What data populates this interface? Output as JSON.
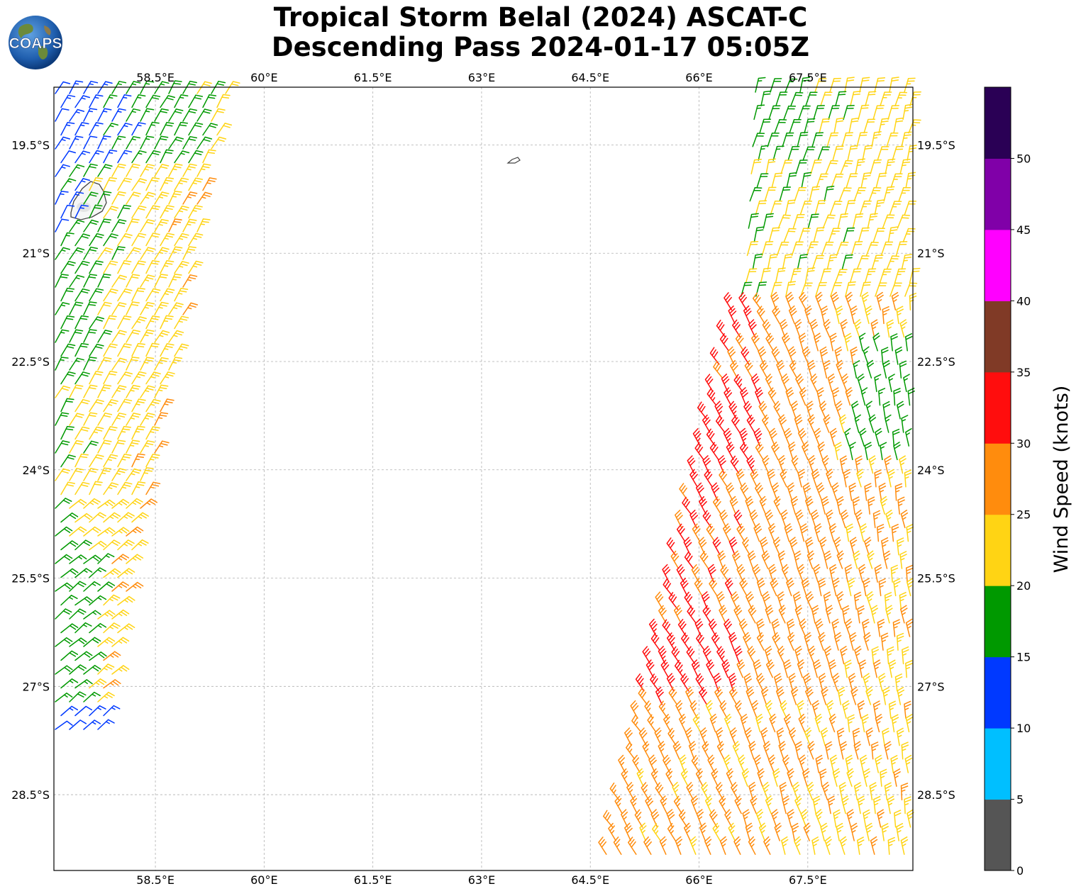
{
  "title": {
    "line1": "Tropical Storm Belal (2024) ASCAT-C",
    "line2": "Descending Pass 2024-01-17 05:05Z"
  },
  "logo": {
    "text": "COAPS",
    "icon": "globe-logo-icon"
  },
  "map": {
    "lon_range": [
      57.1,
      68.95
    ],
    "lat_range": [
      -29.55,
      -18.7
    ],
    "lon_ticks": [
      "58.5°E",
      "60°E",
      "61.5°E",
      "63°E",
      "64.5°E",
      "66°E",
      "67.5°E"
    ],
    "lat_ticks": [
      "19.5°S",
      "21°S",
      "22.5°S",
      "24°S",
      "25.5°S",
      "27°S",
      "28.5°S"
    ],
    "grid": true,
    "features": [
      "Mauritius island outline",
      "small island near 63.3°E 19.7°S"
    ]
  },
  "colorbar": {
    "label": "Wind Speed (knots)",
    "ticks": [
      "0",
      "5",
      "10",
      "15",
      "20",
      "25",
      "30",
      "35",
      "40",
      "45",
      "50"
    ],
    "colors": [
      "#555555",
      "#00bfff",
      "#0039ff",
      "#009900",
      "#ffd414",
      "#ff8c0d",
      "#ff0d0d",
      "#803a26",
      "#ff00ff",
      "#8000a8",
      "#2a0055"
    ]
  },
  "chart_data": {
    "type": "wind_barbs",
    "units": "knots",
    "swaths": [
      {
        "name": "west",
        "dominant_speeds": "10-25 kt, blue/green near Mauritius, yellow to the southeast edge"
      },
      {
        "name": "east",
        "dominant_speeds": "15-35 kt, green north, yellow/orange center, red patches near 65.5-66.5°E 23-27°S"
      }
    ]
  }
}
